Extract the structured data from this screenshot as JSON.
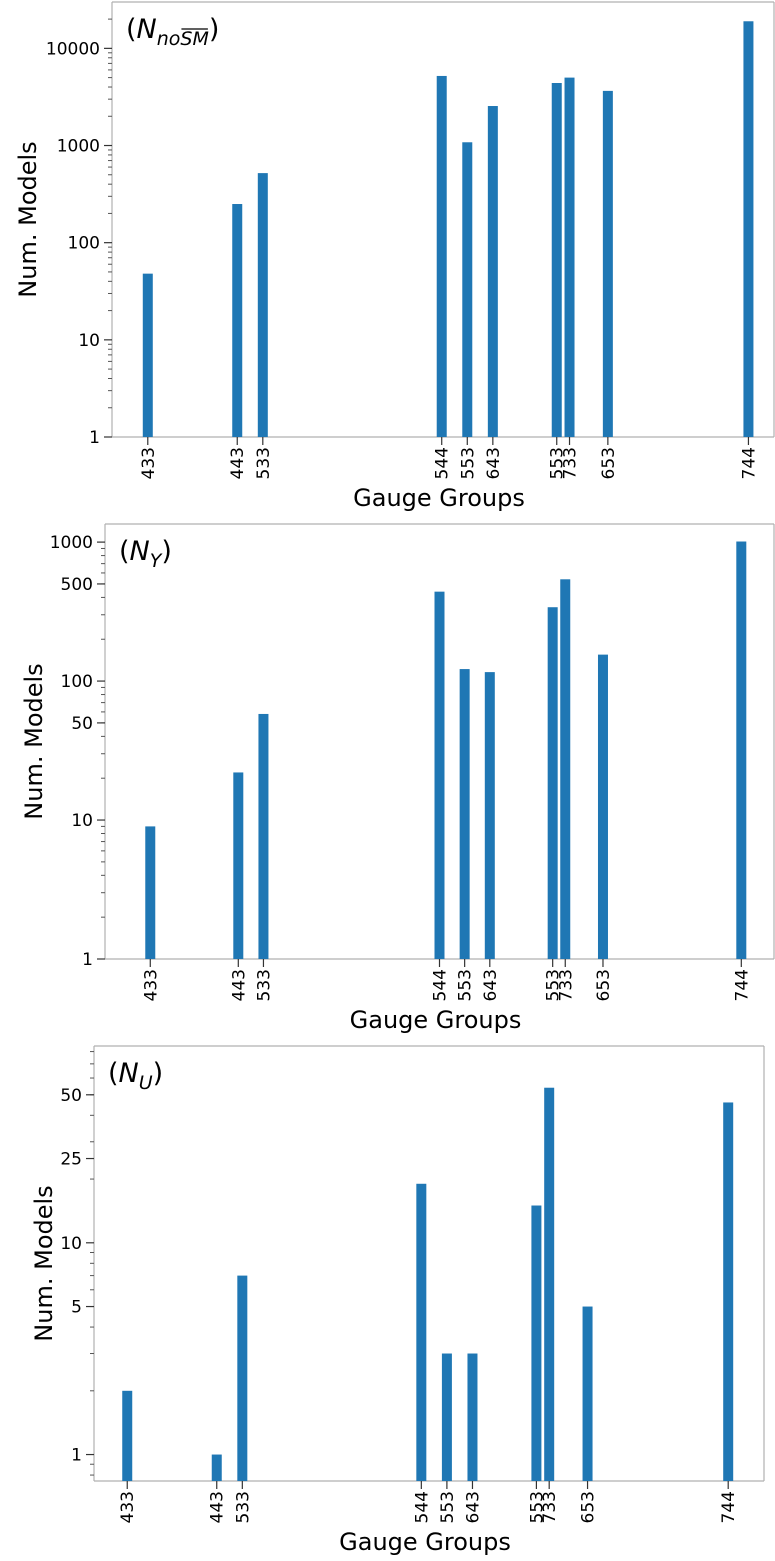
{
  "colors": {
    "bar": "#1f77b4",
    "frame": "#b0b0b0"
  },
  "chart_data": [
    {
      "type": "bar",
      "panel_label": {
        "open": "(",
        "main": "N",
        "sub": "no",
        "sub_over": "SM",
        "close": ")"
      },
      "xlabel": "Gauge Groups",
      "ylabel": "Num. Models",
      "yscale": "log",
      "ylim": [
        1,
        30000
      ],
      "yticks": [
        1,
        10,
        100,
        1000,
        10000
      ],
      "yticklabels": [
        "1",
        "10",
        "100",
        "1000",
        "10000"
      ],
      "categories": [
        "433",
        "443",
        "533",
        "544",
        "553",
        "643",
        "553",
        "733",
        "653",
        "744"
      ],
      "x": [
        4.5,
        8,
        9,
        16,
        17,
        18,
        20.5,
        21,
        22.5,
        28
      ],
      "xlim": [
        3.1,
        29
      ],
      "values": [
        48,
        250,
        520,
        5200,
        1080,
        2550,
        4400,
        5000,
        3650,
        19000
      ]
    },
    {
      "type": "bar",
      "panel_label": {
        "open": "(",
        "main": "N",
        "sub": "Y",
        "close": ")"
      },
      "xlabel": "Gauge Groups",
      "ylabel": "Num. Models",
      "yscale": "log",
      "ylim": [
        1,
        1350
      ],
      "yticks": [
        1,
        10,
        50,
        100,
        500,
        1000
      ],
      "yticklabels": [
        "1",
        "10",
        "50",
        "100",
        "500",
        "1000"
      ],
      "categories": [
        "433",
        "443",
        "533",
        "544",
        "553",
        "643",
        "553",
        "733",
        "653",
        "744"
      ],
      "x": [
        4.5,
        8,
        9,
        16,
        17,
        18,
        20.5,
        21,
        22.5,
        28
      ],
      "xlim": [
        2.7,
        29.3
      ],
      "values": [
        9,
        22,
        58,
        440,
        122,
        116,
        340,
        540,
        155,
        1010
      ]
    },
    {
      "type": "bar",
      "panel_label": {
        "open": "(",
        "main": "N",
        "sub": "U",
        "close": ")"
      },
      "xlabel": "Gauge Groups",
      "ylabel": "Num. Models",
      "yscale": "log",
      "ylim": [
        0.75,
        85
      ],
      "yticks": [
        1,
        5,
        10,
        25,
        50
      ],
      "yticklabels": [
        "1",
        "5",
        "10",
        "25",
        "50"
      ],
      "categories": [
        "433",
        "443",
        "533",
        "544",
        "553",
        "643",
        "553",
        "733",
        "653",
        "744"
      ],
      "x": [
        4.5,
        8,
        9,
        16,
        17,
        18,
        20.5,
        21,
        22.5,
        28
      ],
      "xlim": [
        3.2,
        29.4
      ],
      "values": [
        2,
        1,
        7,
        19,
        3,
        3,
        15,
        54,
        5,
        46
      ]
    }
  ]
}
